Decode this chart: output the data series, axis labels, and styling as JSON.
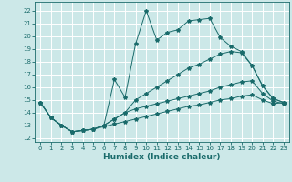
{
  "xlabel": "Humidex (Indice chaleur)",
  "bg_color": "#cce8e8",
  "line_color": "#1a6b6b",
  "grid_color": "#ffffff",
  "xlim": [
    -0.5,
    23.5
  ],
  "ylim": [
    11.7,
    22.7
  ],
  "xticks": [
    0,
    1,
    2,
    3,
    4,
    5,
    6,
    7,
    8,
    9,
    10,
    11,
    12,
    13,
    14,
    15,
    16,
    17,
    18,
    19,
    20,
    21,
    22,
    23
  ],
  "yticks": [
    12,
    13,
    14,
    15,
    16,
    17,
    18,
    19,
    20,
    21,
    22
  ],
  "series": {
    "line1_top": {
      "x": [
        0,
        1,
        2,
        3,
        4,
        5,
        6,
        7,
        8,
        9,
        10,
        11,
        12,
        13,
        14,
        15,
        16,
        17,
        18,
        19,
        20,
        21,
        22,
        23
      ],
      "y": [
        14.8,
        13.6,
        13.0,
        12.5,
        12.6,
        12.7,
        13.0,
        16.6,
        15.2,
        19.4,
        22.0,
        19.7,
        20.3,
        20.5,
        21.2,
        21.3,
        21.4,
        19.9,
        19.2,
        18.8,
        17.7,
        16.1,
        15.1,
        14.8
      ]
    },
    "line2_med": {
      "x": [
        0,
        1,
        2,
        3,
        4,
        5,
        6,
        7,
        8,
        9,
        10,
        11,
        12,
        13,
        14,
        15,
        16,
        17,
        18,
        19,
        20,
        21,
        22,
        23
      ],
      "y": [
        14.8,
        13.6,
        13.0,
        12.5,
        12.6,
        12.7,
        13.0,
        13.5,
        14.0,
        15.0,
        15.5,
        16.0,
        16.5,
        17.0,
        17.5,
        17.8,
        18.2,
        18.6,
        18.8,
        18.7,
        17.7,
        16.1,
        15.1,
        14.8
      ]
    },
    "line3_low": {
      "x": [
        0,
        1,
        2,
        3,
        4,
        5,
        6,
        7,
        8,
        9,
        10,
        11,
        12,
        13,
        14,
        15,
        16,
        17,
        18,
        19,
        20,
        21,
        22,
        23
      ],
      "y": [
        14.8,
        13.6,
        13.0,
        12.5,
        12.6,
        12.7,
        13.0,
        13.5,
        14.0,
        14.3,
        14.5,
        14.7,
        14.9,
        15.1,
        15.3,
        15.5,
        15.7,
        16.0,
        16.2,
        16.4,
        16.5,
        15.5,
        14.9,
        14.7
      ]
    },
    "line4_bot": {
      "x": [
        0,
        1,
        2,
        3,
        4,
        5,
        6,
        7,
        8,
        9,
        10,
        11,
        12,
        13,
        14,
        15,
        16,
        17,
        18,
        19,
        20,
        21,
        22,
        23
      ],
      "y": [
        14.8,
        13.6,
        13.0,
        12.5,
        12.6,
        12.7,
        12.9,
        13.1,
        13.3,
        13.5,
        13.7,
        13.9,
        14.1,
        14.3,
        14.5,
        14.6,
        14.8,
        15.0,
        15.1,
        15.3,
        15.4,
        15.0,
        14.7,
        14.8
      ]
    }
  }
}
